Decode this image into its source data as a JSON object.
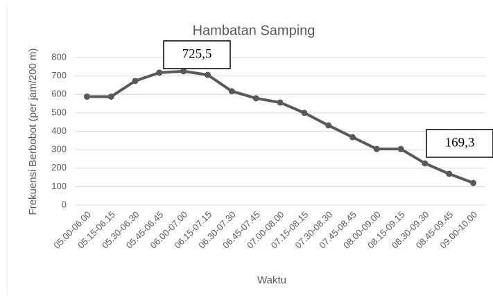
{
  "chart_data": {
    "type": "line",
    "title": "Hambatan Samping",
    "x_label": "Waktu",
    "y_label": "Frekuensi Berbobot (per jam/200 m)",
    "categories": [
      "05.00-06.00",
      "05.15-06.15",
      "05.30-06.30",
      "05.45-06.45",
      "06.00-07.00",
      "06.15-07.15",
      "06.30-07.30",
      "06.45-07.45",
      "07.00-08.00",
      "07.15-08.15",
      "07.30-08.30",
      "07.45-08.45",
      "08.00-09.00",
      "08.15-09.15",
      "08.30-09.30",
      "08.45-09.45",
      "09.00-10.00"
    ],
    "values": [
      588,
      588,
      673,
      718,
      725.5,
      706,
      617,
      579,
      556,
      500,
      432,
      368,
      304,
      304,
      226,
      169.3,
      120
    ],
    "value_labels": [
      null,
      null,
      null,
      null,
      "725,5",
      null,
      null,
      null,
      null,
      null,
      null,
      null,
      null,
      null,
      null,
      "169,3",
      null
    ],
    "color": "#595959",
    "ylim": [
      0,
      800
    ],
    "yticks": [
      0,
      100,
      200,
      300,
      400,
      500,
      600,
      700,
      800
    ],
    "grid": true
  }
}
